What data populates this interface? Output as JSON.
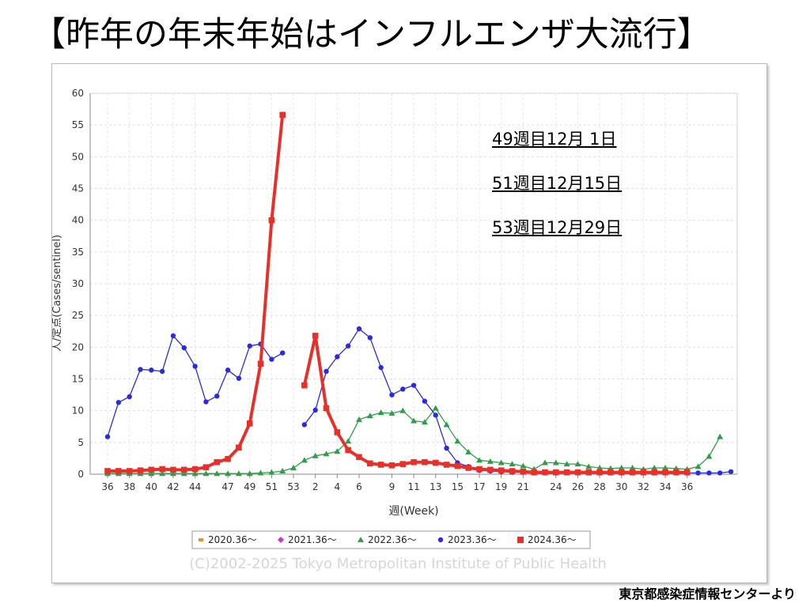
{
  "slide": {
    "title": "【昨年の年末年始はインフルエンザ大流行】",
    "credit": "東京都感染症情報センターより"
  },
  "chart_data": {
    "type": "line",
    "ylabel": "人/定点(Cases/sentinel)",
    "xlabel": "週(Week)",
    "ylim": [
      0,
      60
    ],
    "y_ticks": [
      0,
      5,
      10,
      15,
      20,
      25,
      30,
      35,
      40,
      45,
      50,
      55,
      60
    ],
    "x_ticks": [
      "36",
      "38",
      "40",
      "42",
      "44",
      "47",
      "49",
      "51",
      "53",
      "2",
      "4",
      "6",
      "9",
      "11",
      "13",
      "15",
      "17",
      "19",
      "21",
      "24",
      "26",
      "28",
      "30",
      "32",
      "34",
      "36"
    ],
    "grid": true,
    "legend_position": "bottom",
    "watermark": "(C)2002-2025 Tokyo Metropolitan Institute of Public Health",
    "annotations": [
      "49週目12月 1日",
      "51週目12月15日",
      "53週目12月29日"
    ],
    "series": [
      {
        "name": "2020.36〜",
        "color": "#f28c28",
        "marker": "square-small",
        "values": []
      },
      {
        "name": "2021.36〜",
        "color": "#cc33cc",
        "marker": "diamond",
        "values": []
      },
      {
        "name": "2022.36〜",
        "color": "#2e9e47",
        "marker": "triangle",
        "values": [
          0.1,
          0.1,
          0.1,
          0.1,
          0.1,
          0.1,
          0.1,
          0.1,
          0.1,
          0.1,
          0.1,
          0.1,
          0.1,
          0.1,
          0.2,
          0.3,
          0.5,
          1.0,
          2.2,
          2.9,
          3.2,
          3.6,
          5.2,
          8.6,
          9.2,
          9.7,
          9.6,
          10.0,
          8.4,
          8.2,
          10.4,
          7.8,
          5.2,
          3.5,
          2.2,
          2.0,
          1.8,
          1.6,
          1.3,
          0.8,
          1.8,
          1.8,
          1.6,
          1.6,
          1.2,
          1.0,
          0.9,
          1.0,
          1.0,
          0.8,
          1.0,
          1.0,
          0.9,
          0.8,
          1.2,
          2.8,
          5.9
        ]
      },
      {
        "name": "2023.36〜",
        "color": "#2a2ae0",
        "marker": "circle",
        "values": [
          5.9,
          11.3,
          12.2,
          16.5,
          16.4,
          16.2,
          21.8,
          19.9,
          17.0,
          11.4,
          12.3,
          16.4,
          15.1,
          20.2,
          20.5,
          18.1,
          19.1,
          null,
          7.8,
          10.1,
          16.2,
          18.5,
          20.2,
          22.9,
          21.5,
          16.8,
          12.5,
          13.4,
          14.0,
          11.5,
          9.3,
          4.1,
          1.8,
          1.2,
          0.6,
          0.5,
          0.4,
          0.3,
          0.3,
          0.2,
          0.2,
          0.2,
          0.2,
          0.2,
          0.2,
          0.2,
          0.2,
          0.2,
          0.2,
          0.2,
          0.2,
          0.2,
          0.2,
          0.2,
          0.2,
          0.2,
          0.2,
          0.4
        ]
      },
      {
        "name": "2024.36〜",
        "color": "#e8302a",
        "marker": "square",
        "values": [
          0.5,
          0.5,
          0.5,
          0.6,
          0.7,
          0.8,
          0.7,
          0.7,
          0.8,
          1.1,
          1.9,
          2.4,
          4.2,
          8.0,
          17.4,
          40.0,
          56.6,
          null,
          14.0,
          21.8,
          10.4,
          6.6,
          3.8,
          2.7,
          1.7,
          1.5,
          1.4,
          1.6,
          1.9,
          1.9,
          1.8,
          1.5,
          1.3,
          1.0,
          0.8,
          0.7,
          0.6,
          0.5,
          0.4,
          0.3,
          0.3,
          0.3,
          0.3,
          0.3,
          0.3,
          0.3,
          0.3,
          0.3,
          0.3,
          0.3,
          0.3,
          0.3,
          0.3,
          0.3
        ]
      }
    ]
  }
}
